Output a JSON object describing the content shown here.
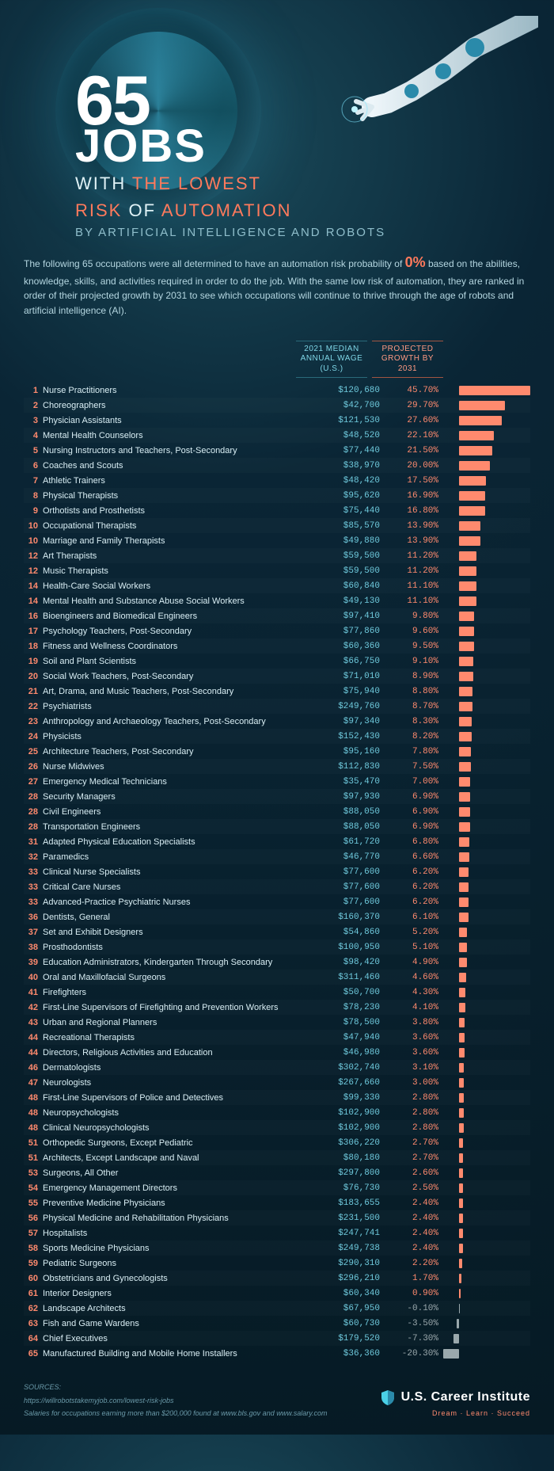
{
  "title": {
    "num": "65",
    "jobs": "JOBS",
    "line1_pre": "WITH ",
    "line1_accent": "THE LOWEST",
    "line2_pre": "RISK ",
    "line2_mid": "OF ",
    "line2_accent": "AUTOMATION",
    "sub": "BY ARTIFICIAL INTELLIGENCE AND ROBOTS"
  },
  "intro_pre": "The following 65 occupations were all determined to have an automation risk probability of ",
  "intro_zero": "0%",
  "intro_post": " based on the abilities, knowledge, skills, and activities required in order to do the job. With the same low risk of automation, they are ranked in order of their projected growth by 2031 to see which occupations will continue to thrive through the age of robots and artificial intelligence (AI).",
  "headers": {
    "wage": "2021 MEDIAN\nANNUAL WAGE\n(U.S.)",
    "growth": "PROJECTED\nGROWTH BY\n2031"
  },
  "colors": {
    "bar_pos": "#ff8a6e",
    "bar_neg": "#9aa8ac",
    "wage": "#6fcadd",
    "growth_pos": "#ff8a6e",
    "growth_neg": "#9aa8ac",
    "rank": "#ff8a6e"
  },
  "bar": {
    "max": 45.7,
    "min": -20.3,
    "pos_width": 90,
    "neg_width": 20
  },
  "rows": [
    {
      "r": 1,
      "job": "Nurse Practitioners",
      "wage": "$120,680",
      "g": 45.7
    },
    {
      "r": 2,
      "job": "Choreographers",
      "wage": "$42,700",
      "g": 29.7
    },
    {
      "r": 3,
      "job": "Physician Assistants",
      "wage": "$121,530",
      "g": 27.6
    },
    {
      "r": 4,
      "job": "Mental Health Counselors",
      "wage": "$48,520",
      "g": 22.1
    },
    {
      "r": 5,
      "job": "Nursing Instructors and Teachers, Post-Secondary",
      "wage": "$77,440",
      "g": 21.5
    },
    {
      "r": 6,
      "job": "Coaches and Scouts",
      "wage": "$38,970",
      "g": 20.0
    },
    {
      "r": 7,
      "job": "Athletic Trainers",
      "wage": "$48,420",
      "g": 17.5
    },
    {
      "r": 8,
      "job": "Physical Therapists",
      "wage": "$95,620",
      "g": 16.9
    },
    {
      "r": 9,
      "job": "Orthotists and Prosthetists",
      "wage": "$75,440",
      "g": 16.8
    },
    {
      "r": 10,
      "job": "Occupational Therapists",
      "wage": "$85,570",
      "g": 13.9
    },
    {
      "r": 10,
      "job": "Marriage and Family Therapists",
      "wage": "$49,880",
      "g": 13.9
    },
    {
      "r": 12,
      "job": "Art Therapists",
      "wage": "$59,500",
      "g": 11.2
    },
    {
      "r": 12,
      "job": "Music Therapists",
      "wage": "$59,500",
      "g": 11.2
    },
    {
      "r": 14,
      "job": "Health-Care Social Workers",
      "wage": "$60,840",
      "g": 11.1
    },
    {
      "r": 14,
      "job": "Mental Health and Substance Abuse Social Workers",
      "wage": "$49,130",
      "g": 11.1
    },
    {
      "r": 16,
      "job": "Bioengineers and Biomedical Engineers",
      "wage": "$97,410",
      "g": 9.8
    },
    {
      "r": 17,
      "job": "Psychology Teachers, Post-Secondary",
      "wage": "$77,860",
      "g": 9.6
    },
    {
      "r": 18,
      "job": "Fitness and Wellness Coordinators",
      "wage": "$60,360",
      "g": 9.5
    },
    {
      "r": 19,
      "job": "Soil and Plant Scientists",
      "wage": "$66,750",
      "g": 9.1
    },
    {
      "r": 20,
      "job": "Social Work Teachers, Post-Secondary",
      "wage": "$71,010",
      "g": 8.9
    },
    {
      "r": 21,
      "job": "Art, Drama, and Music Teachers, Post-Secondary",
      "wage": "$75,940",
      "g": 8.8
    },
    {
      "r": 22,
      "job": "Psychiatrists",
      "wage": "$249,760",
      "g": 8.7
    },
    {
      "r": 23,
      "job": "Anthropology and Archaeology Teachers, Post-Secondary",
      "wage": "$97,340",
      "g": 8.3
    },
    {
      "r": 24,
      "job": "Physicists",
      "wage": "$152,430",
      "g": 8.2
    },
    {
      "r": 25,
      "job": "Architecture Teachers, Post-Secondary",
      "wage": "$95,160",
      "g": 7.8
    },
    {
      "r": 26,
      "job": "Nurse Midwives",
      "wage": "$112,830",
      "g": 7.5
    },
    {
      "r": 27,
      "job": "Emergency Medical Technicians",
      "wage": "$35,470",
      "g": 7.0
    },
    {
      "r": 28,
      "job": "Security Managers",
      "wage": "$97,930",
      "g": 6.9
    },
    {
      "r": 28,
      "job": "Civil Engineers",
      "wage": "$88,050",
      "g": 6.9
    },
    {
      "r": 28,
      "job": "Transportation Engineers",
      "wage": "$88,050",
      "g": 6.9
    },
    {
      "r": 31,
      "job": "Adapted Physical Education Specialists",
      "wage": "$61,720",
      "g": 6.8
    },
    {
      "r": 32,
      "job": "Paramedics",
      "wage": "$46,770",
      "g": 6.6
    },
    {
      "r": 33,
      "job": "Clinical Nurse Specialists",
      "wage": "$77,600",
      "g": 6.2
    },
    {
      "r": 33,
      "job": "Critical Care Nurses",
      "wage": "$77,600",
      "g": 6.2
    },
    {
      "r": 33,
      "job": "Advanced-Practice Psychiatric Nurses",
      "wage": "$77,600",
      "g": 6.2
    },
    {
      "r": 36,
      "job": "Dentists, General",
      "wage": "$160,370",
      "g": 6.1
    },
    {
      "r": 37,
      "job": "Set and Exhibit Designers",
      "wage": "$54,860",
      "g": 5.2
    },
    {
      "r": 38,
      "job": "Prosthodontists",
      "wage": "$100,950",
      "g": 5.1
    },
    {
      "r": 39,
      "job": "Education Administrators, Kindergarten Through Secondary",
      "wage": "$98,420",
      "g": 4.9
    },
    {
      "r": 40,
      "job": "Oral and Maxillofacial Surgeons",
      "wage": "$311,460",
      "g": 4.6
    },
    {
      "r": 41,
      "job": "Firefighters",
      "wage": "$50,700",
      "g": 4.3
    },
    {
      "r": 42,
      "job": "First-Line Supervisors of Firefighting and Prevention Workers",
      "wage": "$78,230",
      "g": 4.1
    },
    {
      "r": 43,
      "job": "Urban and Regional Planners",
      "wage": "$78,500",
      "g": 3.8
    },
    {
      "r": 44,
      "job": "Recreational Therapists",
      "wage": "$47,940",
      "g": 3.6
    },
    {
      "r": 44,
      "job": "Directors, Religious Activities and Education",
      "wage": "$46,980",
      "g": 3.6
    },
    {
      "r": 46,
      "job": "Dermatologists",
      "wage": "$302,740",
      "g": 3.1
    },
    {
      "r": 47,
      "job": "Neurologists",
      "wage": "$267,660",
      "g": 3.0
    },
    {
      "r": 48,
      "job": "First-Line Supervisors of Police and Detectives",
      "wage": "$99,330",
      "g": 2.8
    },
    {
      "r": 48,
      "job": "Neuropsychologists",
      "wage": "$102,900",
      "g": 2.8
    },
    {
      "r": 48,
      "job": "Clinical Neuropsychologists",
      "wage": "$102,900",
      "g": 2.8
    },
    {
      "r": 51,
      "job": "Orthopedic Surgeons, Except Pediatric",
      "wage": "$306,220",
      "g": 2.7
    },
    {
      "r": 51,
      "job": "Architects, Except Landscape and Naval",
      "wage": "$80,180",
      "g": 2.7
    },
    {
      "r": 53,
      "job": "Surgeons, All Other",
      "wage": "$297,800",
      "g": 2.6
    },
    {
      "r": 54,
      "job": "Emergency Management Directors",
      "wage": "$76,730",
      "g": 2.5
    },
    {
      "r": 55,
      "job": "Preventive Medicine Physicians",
      "wage": "$183,655",
      "g": 2.4
    },
    {
      "r": 56,
      "job": "Physical Medicine and Rehabilitation Physicians",
      "wage": "$231,500",
      "g": 2.4
    },
    {
      "r": 57,
      "job": "Hospitalists",
      "wage": "$247,741",
      "g": 2.4
    },
    {
      "r": 58,
      "job": "Sports Medicine Physicians",
      "wage": "$249,738",
      "g": 2.4
    },
    {
      "r": 59,
      "job": "Pediatric Surgeons",
      "wage": "$290,310",
      "g": 2.2
    },
    {
      "r": 60,
      "job": "Obstetricians and Gynecologists",
      "wage": "$296,210",
      "g": 1.7
    },
    {
      "r": 61,
      "job": "Interior Designers",
      "wage": "$60,340",
      "g": 0.9
    },
    {
      "r": 62,
      "job": "Landscape Architects",
      "wage": "$67,950",
      "g": -0.1
    },
    {
      "r": 63,
      "job": "Fish and Game Wardens",
      "wage": "$60,730",
      "g": -3.5
    },
    {
      "r": 64,
      "job": "Chief Executives",
      "wage": "$179,520",
      "g": -7.3
    },
    {
      "r": 65,
      "job": "Manufactured Building and Mobile Home Installers",
      "wage": "$36,360",
      "g": -20.3
    }
  ],
  "footer": {
    "sources_lbl": "SOURCES:",
    "src1": "https://willrobotstakemyjob.com/lowest-risk-jobs",
    "src2": "Salaries for occupations earning more than $200,000 found at www.bls.gov and www.salary.com",
    "brand": "U.S. Career Institute",
    "tag": "Dream · Learn · Succeed"
  }
}
